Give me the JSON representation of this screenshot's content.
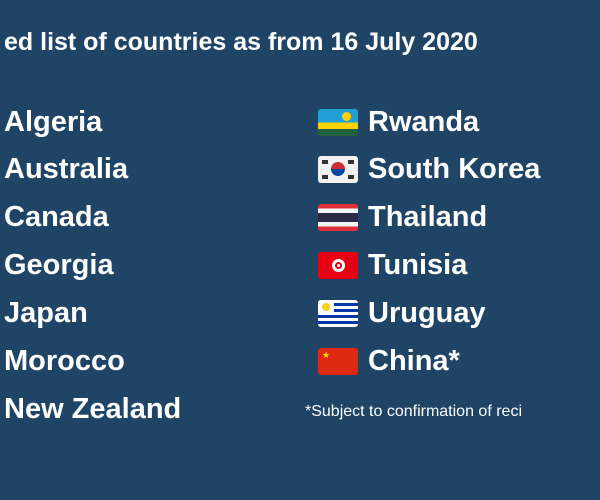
{
  "title": "ed list of countries as from 16 July 2020",
  "left_countries": [
    "Algeria",
    "Australia",
    "Canada",
    "Georgia",
    "Japan",
    "Morocco",
    "New Zealand"
  ],
  "right_countries": [
    {
      "name": "Rwanda",
      "flag": "rwanda-flag"
    },
    {
      "name": "South Korea",
      "flag": "south-korea-flag"
    },
    {
      "name": "Thailand",
      "flag": "thailand-flag"
    },
    {
      "name": "Tunisia",
      "flag": "tunisia-flag"
    },
    {
      "name": "Uruguay",
      "flag": "uruguay-flag"
    },
    {
      "name": "China*",
      "flag": "china-flag"
    }
  ],
  "footnote": "*Subject to confirmation of reci",
  "colors": {
    "background": "#1f4466",
    "text": "#ffffff"
  }
}
